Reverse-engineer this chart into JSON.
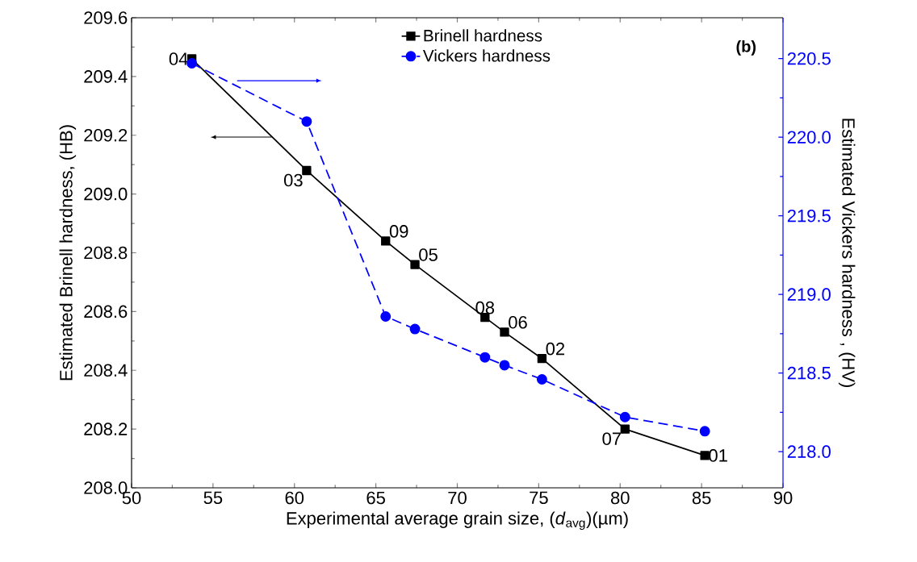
{
  "chart_data": {
    "type": "line",
    "xlabel": "Experimental average grain size, (*d*$_{avg}$)(µm)",
    "ylabel": "Estimated Brinell hardness, (HB)",
    "y2label": "Estimated Vickers hardness , (HV)",
    "x": [
      53.7,
      60.75,
      65.6,
      67.4,
      71.7,
      72.9,
      75.2,
      80.3,
      85.2
    ],
    "series": [
      {
        "name": "Brinell hardness",
        "color": "#000000",
        "marker": "square",
        "line_style": "solid",
        "values": [
          209.46,
          209.08,
          208.84,
          208.76,
          208.58,
          208.53,
          208.44,
          208.2,
          208.11
        ]
      },
      {
        "name": "Vickers hardness",
        "color": "#0000ff",
        "marker": "circle",
        "line_style": "dashed",
        "axis": "y2",
        "values": [
          220.47,
          220.1,
          218.86,
          218.78,
          218.6,
          218.55,
          218.46,
          218.22,
          218.13
        ]
      }
    ],
    "xlim": [
      50,
      90
    ],
    "xticks": [
      50,
      55,
      60,
      65,
      70,
      75,
      80,
      85,
      90
    ],
    "ylim": [
      208.0,
      209.6
    ],
    "yticks": [
      {
        "value": 208.0,
        "label": "208.0"
      },
      208.2,
      208.4,
      208.6,
      208.8,
      {
        "value": 209.0,
        "label": "209.0"
      },
      209.2,
      209.4,
      209.6
    ],
    "y2lim": [
      217.77,
      220.76
    ],
    "y2ticks": [
      {
        "value": 218.0,
        "label": "218.0"
      },
      218.5,
      {
        "value": 219.0,
        "label": "219.0"
      },
      219.5,
      {
        "value": 220.0,
        "label": "220.0"
      },
      220.5
    ],
    "legend": "top",
    "annotations": [
      "(b)",
      {
        "text": "04",
        "x": 53.7,
        "y": 209.46
      },
      {
        "text": "03",
        "x": 60.75,
        "y": 209.08
      },
      {
        "text": "09",
        "x": 65.6,
        "y": 208.84
      },
      {
        "text": "05",
        "x": 67.4,
        "y": 208.76
      },
      {
        "text": "08",
        "x": 71.7,
        "y": 208.58
      },
      {
        "text": "06",
        "x": 72.9,
        "y": 208.53
      },
      {
        "text": "02",
        "x": 75.2,
        "y": 208.44
      },
      {
        "text": "07",
        "x": 80.3,
        "y": 208.2
      },
      {
        "text": "01",
        "x": 85.2,
        "y": 208.11
      }
    ]
  }
}
